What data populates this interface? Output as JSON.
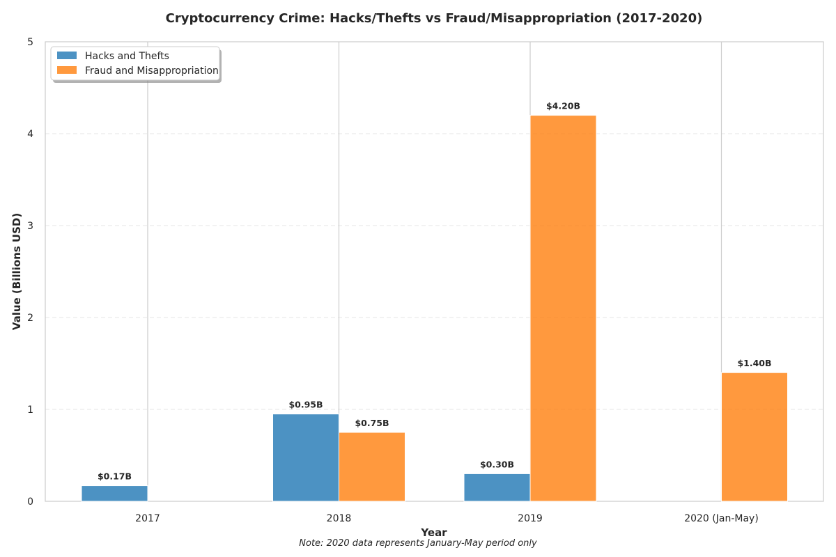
{
  "chart_data": {
    "type": "bar",
    "title": "Cryptocurrency Crime: Hacks/Thefts vs Fraud/Misappropriation (2017-2020)",
    "xlabel": "Year",
    "ylabel": "Value (Billions USD)",
    "categories": [
      "2017",
      "2018",
      "2019",
      "2020 (Jan-May)"
    ],
    "series": [
      {
        "name": "Hacks and Thefts",
        "color": "#1f77b4",
        "values": [
          0.17,
          0.95,
          0.3,
          0
        ],
        "labels": [
          "$0.17B",
          "$0.95B",
          "$0.30B",
          ""
        ]
      },
      {
        "name": "Fraud and Misappropriation",
        "color": "#ff7f0e",
        "values": [
          0,
          0.75,
          4.2,
          1.4
        ],
        "labels": [
          "",
          "$0.75B",
          "$4.20B",
          "$1.40B"
        ]
      }
    ],
    "ylim": [
      0,
      5
    ],
    "yticks": [
      0,
      1,
      2,
      3,
      4,
      5
    ],
    "grid": true,
    "legend_position": "top-left",
    "note": "Note: 2020 data represents January-May period only"
  }
}
